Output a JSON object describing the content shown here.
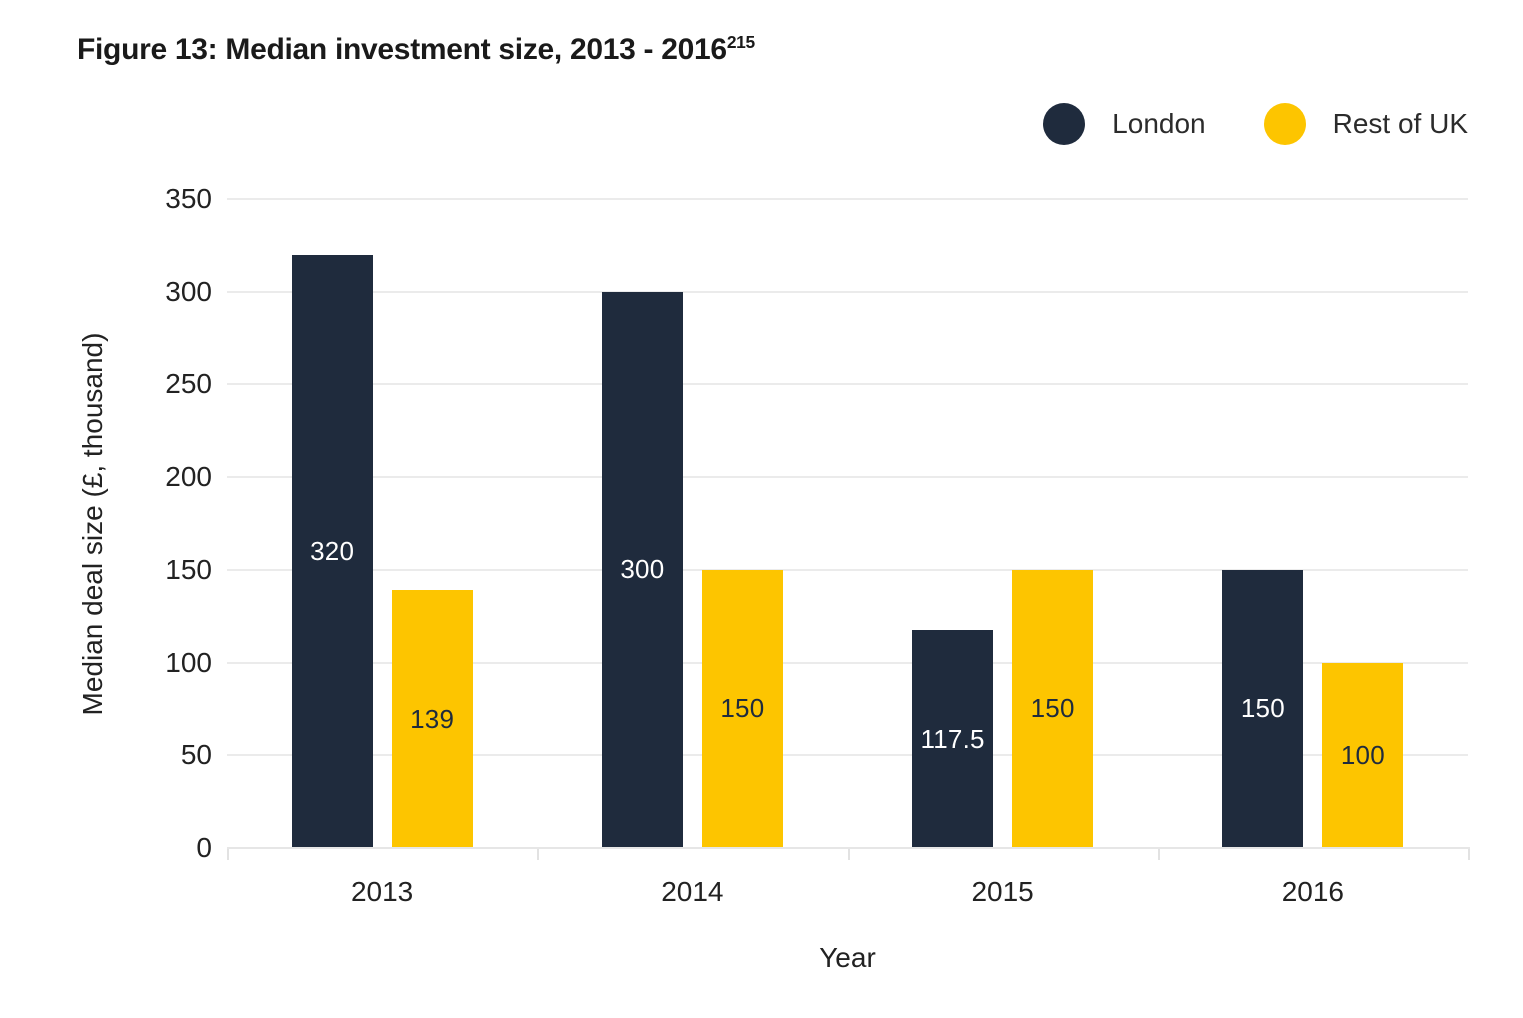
{
  "title": {
    "text": "Figure 13: Median investment size, 2013 - 2016",
    "superscript": "215"
  },
  "legend": [
    {
      "label": "London",
      "color": "#1F2B3D"
    },
    {
      "label": "Rest of UK",
      "color": "#FDC500"
    }
  ],
  "chart_data": {
    "type": "bar",
    "categories": [
      "2013",
      "2014",
      "2015",
      "2016"
    ],
    "series": [
      {
        "name": "London",
        "color": "#1F2B3D",
        "label_color": "#FFFFFF",
        "values": [
          320,
          300,
          117.5,
          150
        ]
      },
      {
        "name": "Rest of UK",
        "color": "#FDC500",
        "label_color": "#1F2B3D",
        "values": [
          139,
          150,
          150,
          100
        ]
      }
    ],
    "bar_labels": [
      [
        "320",
        "300",
        "117.5",
        "150"
      ],
      [
        "139",
        "150",
        "150",
        "100"
      ]
    ],
    "title": "Figure 13: Median investment size, 2013 - 2016",
    "xlabel": "Year",
    "ylabel": "Median deal size (£, thousand)",
    "ylim": [
      0,
      350
    ],
    "ytick_step": 50,
    "yticks": [
      0,
      50,
      100,
      150,
      200,
      250,
      300,
      350
    ],
    "grid": true,
    "legend_position": "top-right"
  }
}
